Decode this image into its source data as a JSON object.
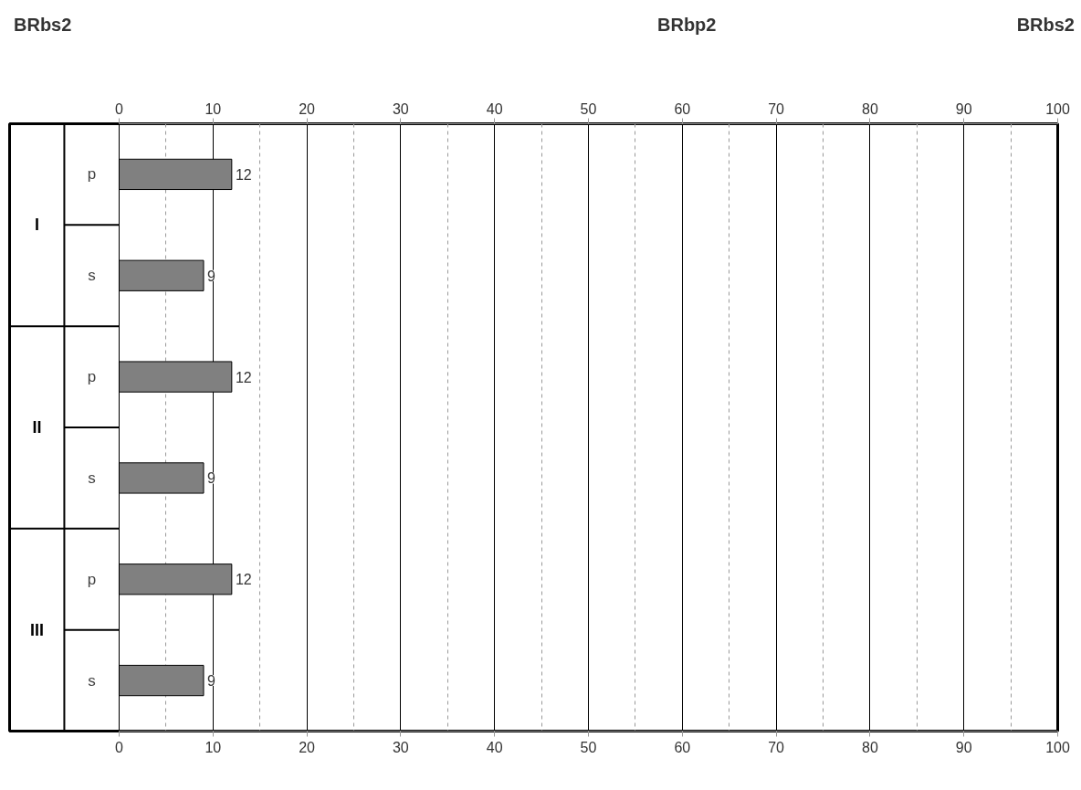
{
  "chart_data": {
    "type": "bar",
    "orientation": "horizontal",
    "categories": [
      "p",
      "s",
      "p",
      "s",
      "p",
      "s"
    ],
    "values": [
      12,
      9,
      12,
      9,
      12,
      9
    ],
    "color": "#808080",
    "data_labels": true,
    "xlim": [
      0,
      100
    ],
    "xticks": [
      0,
      10,
      20,
      30,
      40,
      50,
      60,
      70,
      80,
      90,
      100
    ],
    "x2lim": [
      0,
      100
    ],
    "x2ticks": [
      0,
      10,
      20,
      30,
      40,
      50,
      60,
      70,
      80,
      90,
      100
    ],
    "grid": "x",
    "annotations": [
      "BRbs2",
      "BRbp2",
      "BRbs2",
      "I",
      "II",
      "III"
    ]
  }
}
